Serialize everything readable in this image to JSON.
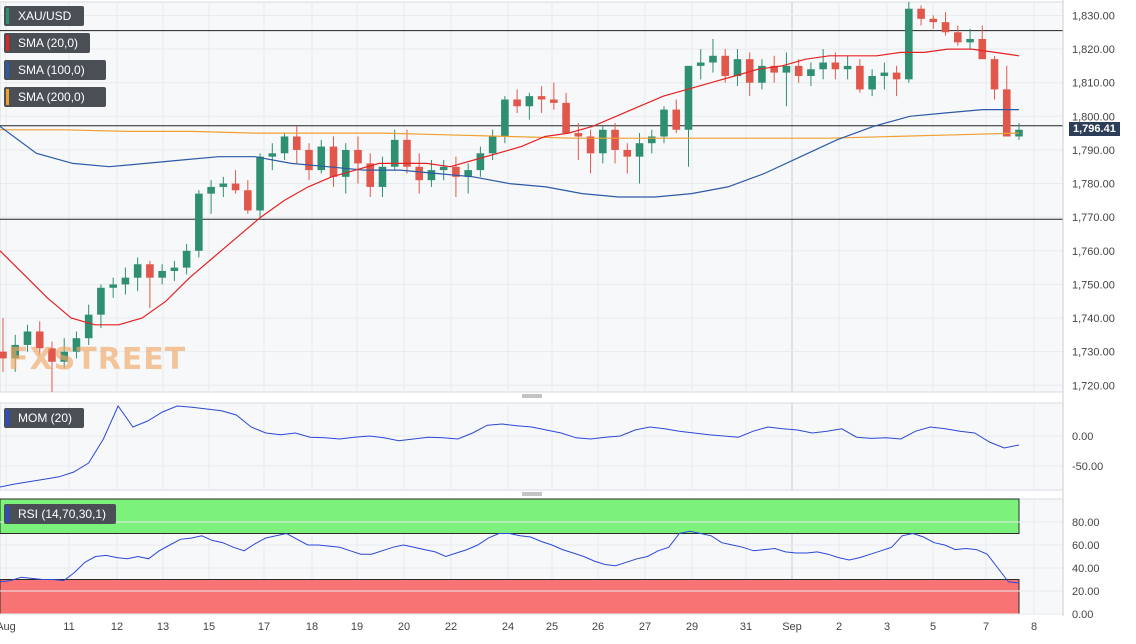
{
  "chart_data": [
    {
      "type": "candlestick",
      "panel": "price",
      "symbol": "XAU/USD",
      "legend": [
        "XAU/USD",
        "SMA (20,0)",
        "SMA (100,0)",
        "SMA (200,0)"
      ],
      "y_ticks": [
        "1,830.00",
        "1,820.00",
        "1,810.00",
        "1,800.00",
        "1,790.00",
        "1,780.00",
        "1,770.00",
        "1,760.00",
        "1,750.00",
        "1,740.00",
        "1,730.00",
        "1,720.00"
      ],
      "ylim": [
        1718,
        1834
      ],
      "x_ticks": [
        "Aug",
        "11",
        "12",
        "13",
        "15",
        "17",
        "18",
        "19",
        "20",
        "22",
        "24",
        "25",
        "26",
        "27",
        "29",
        "31",
        "Sep",
        "2",
        "3",
        "5",
        "7",
        "8"
      ],
      "horizontal_levels": [
        1825.5,
        1797.2,
        1769.4
      ],
      "last_price": "1,796.41",
      "candles": [
        [
          1730,
          1740,
          1724,
          1728
        ],
        [
          1728,
          1735,
          1724,
          1732
        ],
        [
          1732,
          1738,
          1730,
          1736
        ],
        [
          1736,
          1739,
          1729,
          1731
        ],
        [
          1731,
          1733,
          1718,
          1727
        ],
        [
          1727,
          1734,
          1725,
          1730
        ],
        [
          1730,
          1736,
          1728,
          1734
        ],
        [
          1734,
          1744,
          1732,
          1741
        ],
        [
          1741,
          1750,
          1737,
          1749
        ],
        [
          1749,
          1752,
          1746,
          1750
        ],
        [
          1750,
          1755,
          1747,
          1752
        ],
        [
          1752,
          1758,
          1748,
          1756
        ],
        [
          1756,
          1757,
          1743,
          1752
        ],
        [
          1752,
          1756,
          1750,
          1754
        ],
        [
          1754,
          1757,
          1751,
          1755
        ],
        [
          1755,
          1762,
          1753,
          1760
        ],
        [
          1760,
          1778,
          1758,
          1777
        ],
        [
          1777,
          1781,
          1771,
          1779
        ],
        [
          1779,
          1782,
          1776,
          1780
        ],
        [
          1780,
          1784,
          1777,
          1778
        ],
        [
          1778,
          1781,
          1771,
          1772
        ],
        [
          1772,
          1789,
          1770,
          1788
        ],
        [
          1788,
          1792,
          1784,
          1789
        ],
        [
          1789,
          1795,
          1787,
          1794
        ],
        [
          1794,
          1797,
          1786,
          1790
        ],
        [
          1790,
          1792,
          1781,
          1784
        ],
        [
          1784,
          1793,
          1783,
          1791
        ],
        [
          1791,
          1794,
          1779,
          1782
        ],
        [
          1782,
          1792,
          1777,
          1790
        ],
        [
          1790,
          1794,
          1780,
          1786
        ],
        [
          1786,
          1789,
          1776,
          1779
        ],
        [
          1779,
          1788,
          1776,
          1785
        ],
        [
          1785,
          1796,
          1784,
          1793
        ],
        [
          1793,
          1796,
          1783,
          1785
        ],
        [
          1785,
          1789,
          1777,
          1781
        ],
        [
          1781,
          1787,
          1779,
          1784
        ],
        [
          1784,
          1787,
          1781,
          1785
        ],
        [
          1785,
          1788,
          1776,
          1782
        ],
        [
          1782,
          1786,
          1777,
          1784
        ],
        [
          1784,
          1791,
          1782,
          1789
        ],
        [
          1789,
          1796,
          1787,
          1794
        ],
        [
          1794,
          1806,
          1792,
          1805
        ],
        [
          1805,
          1808,
          1801,
          1803
        ],
        [
          1803,
          1807,
          1799,
          1806
        ],
        [
          1806,
          1809,
          1801,
          1805
        ],
        [
          1805,
          1810,
          1802,
          1804
        ],
        [
          1804,
          1807,
          1796,
          1795
        ],
        [
          1795,
          1798,
          1787,
          1794
        ],
        [
          1794,
          1796,
          1783,
          1789
        ],
        [
          1789,
          1797,
          1786,
          1796
        ],
        [
          1796,
          1798,
          1786,
          1790
        ],
        [
          1790,
          1792,
          1783,
          1788
        ],
        [
          1788,
          1795,
          1780,
          1792
        ],
        [
          1792,
          1796,
          1789,
          1794
        ],
        [
          1794,
          1803,
          1792,
          1802
        ],
        [
          1802,
          1805,
          1795,
          1796
        ],
        [
          1796,
          1815,
          1785,
          1815
        ],
        [
          1815,
          1820,
          1811,
          1816
        ],
        [
          1816,
          1823,
          1813,
          1818
        ],
        [
          1818,
          1820,
          1810,
          1812
        ],
        [
          1812,
          1820,
          1809,
          1817
        ],
        [
          1817,
          1819,
          1806,
          1810
        ],
        [
          1810,
          1817,
          1808,
          1815
        ],
        [
          1815,
          1818,
          1810,
          1813
        ],
        [
          1813,
          1819,
          1803,
          1815
        ],
        [
          1815,
          1817,
          1810,
          1812
        ],
        [
          1812,
          1816,
          1809,
          1814
        ],
        [
          1814,
          1820,
          1811,
          1816
        ],
        [
          1816,
          1819,
          1811,
          1814
        ],
        [
          1814,
          1818,
          1811,
          1815
        ],
        [
          1815,
          1817,
          1807,
          1808
        ],
        [
          1808,
          1814,
          1806,
          1812
        ],
        [
          1812,
          1816,
          1808,
          1813
        ],
        [
          1813,
          1815,
          1806,
          1811
        ],
        [
          1811,
          1834,
          1810,
          1832
        ],
        [
          1832,
          1833,
          1827,
          1829
        ],
        [
          1829,
          1830,
          1826,
          1828
        ],
        [
          1828,
          1831,
          1824,
          1825
        ],
        [
          1825,
          1827,
          1821,
          1822
        ],
        [
          1822,
          1826,
          1820,
          1823
        ],
        [
          1823,
          1827,
          1817,
          1817
        ],
        [
          1817,
          1818,
          1805,
          1808
        ],
        [
          1808,
          1815,
          1795,
          1794
        ],
        [
          1794,
          1798,
          1793,
          1796
        ]
      ],
      "sma20": [
        1760,
        1753,
        1746,
        1740,
        1738,
        1738,
        1740,
        1745,
        1752,
        1758,
        1764,
        1770,
        1775,
        1779,
        1782,
        1784,
        1786,
        1786,
        1786,
        1785,
        1787,
        1789,
        1791,
        1794,
        1795,
        1797,
        1800,
        1803,
        1806,
        1808,
        1810,
        1812,
        1814,
        1815,
        1817,
        1818,
        1818,
        1818,
        1819,
        1819,
        1820,
        1820,
        1819,
        1818
      ],
      "sma100": [
        1797,
        1789,
        1786,
        1785,
        1786,
        1787,
        1788,
        1788,
        1786,
        1785,
        1784,
        1784,
        1783,
        1782,
        1780,
        1779,
        1777,
        1776,
        1776,
        1777,
        1779,
        1783,
        1788,
        1793,
        1797,
        1800,
        1801,
        1802,
        1802
      ],
      "sma200": [
        1796,
        1796,
        1795.5,
        1795.5,
        1795,
        1795,
        1795,
        1794.5,
        1794,
        1793.5,
        1793.5,
        1793.5,
        1793.5,
        1793.5,
        1794,
        1794.5,
        1795
      ],
      "colors": {
        "up": "#2f8f72",
        "down": "#e2574c",
        "sma20": "#e52222",
        "sma100": "#2c5aa6",
        "sma200": "#f0a030",
        "level": "#222222"
      }
    },
    {
      "type": "line",
      "panel": "momentum",
      "legend": "MOM (20)",
      "y_ticks": [
        "0.00",
        "-50.00"
      ],
      "ylim": [
        -90,
        55
      ],
      "series": [
        {
          "values": [
            -85,
            -80,
            -76,
            -72,
            -68,
            -60,
            -45,
            -5,
            50,
            15,
            25,
            40,
            50,
            48,
            45,
            42,
            35,
            15,
            5,
            2,
            5,
            -2,
            -3,
            -5,
            -2,
            0,
            -3,
            -8,
            -5,
            -2,
            -3,
            -5,
            5,
            18,
            20,
            17,
            15,
            10,
            5,
            -3,
            -5,
            -2,
            0,
            10,
            15,
            12,
            8,
            5,
            2,
            0,
            -2,
            8,
            15,
            12,
            10,
            5,
            8,
            12,
            -2,
            -4,
            -3,
            -5,
            8,
            15,
            12,
            8,
            5,
            -10,
            -20,
            -15
          ]
        }
      ],
      "colors": {
        "line": "#2c48d6"
      }
    },
    {
      "type": "area",
      "panel": "rsi",
      "legend": "RSI (14,70,30,1)",
      "y_ticks": [
        "80.00",
        "60.00",
        "40.00",
        "20.00",
        "0.00"
      ],
      "ylim": [
        0,
        100
      ],
      "bands": {
        "overbought": 70,
        "oversold": 30
      },
      "series": [
        {
          "values": [
            28,
            29,
            32,
            31,
            30,
            30,
            29,
            36,
            45,
            50,
            51,
            49,
            48,
            50,
            48,
            55,
            60,
            65,
            66,
            68,
            64,
            62,
            58,
            55,
            61,
            66,
            68,
            70,
            65,
            60,
            60,
            59,
            58,
            55,
            52,
            52,
            55,
            58,
            60,
            58,
            56,
            54,
            50,
            53,
            56,
            60,
            66,
            70,
            70,
            68,
            67,
            63,
            60,
            56,
            53,
            50,
            46,
            43,
            42,
            45,
            48,
            50,
            55,
            58,
            70,
            72,
            70,
            68,
            62,
            60,
            58,
            55,
            56,
            57,
            54,
            53,
            53,
            54,
            52,
            49,
            47,
            49,
            52,
            55,
            58,
            68,
            70,
            67,
            62,
            60,
            56,
            57,
            56,
            52,
            40,
            28,
            27
          ]
        }
      ],
      "colors": {
        "line": "#2c48d6",
        "overbought": "#7cf27c",
        "oversold": "#f87474"
      }
    }
  ]
}
